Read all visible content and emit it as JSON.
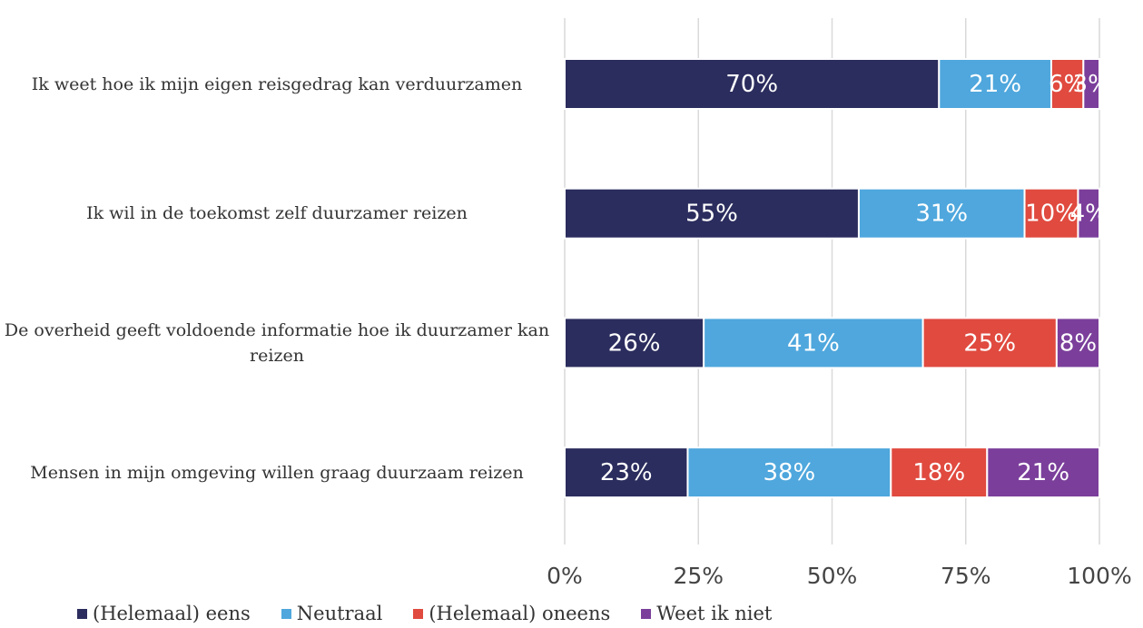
{
  "chart_data": {
    "type": "stacked-barh",
    "categories": [
      "Ik weet hoe ik mijn eigen reisgedrag kan verduurzamen",
      "Ik wil in de toekomst zelf duurzamer reizen",
      "De overheid geeft voldoende informatie hoe ik duurzamer kan reizen",
      "Mensen in mijn omgeving willen graag duurzaam reizen"
    ],
    "series": [
      {
        "name": "(Helemaal) eens",
        "color": "#2b2d5e",
        "values": [
          70,
          55,
          26,
          23
        ],
        "value_labels": [
          "70%",
          "55%",
          "26%",
          "23%"
        ]
      },
      {
        "name": "Neutraal",
        "color": "#4fa7dd",
        "values": [
          21,
          31,
          41,
          38
        ],
        "value_labels": [
          "21%",
          "31%",
          "41%",
          "38%"
        ]
      },
      {
        "name": "(Helemaal) oneens",
        "color": "#e04a3f",
        "values": [
          6,
          10,
          25,
          18
        ],
        "value_labels": [
          "6%",
          "10%",
          "25%",
          "18%"
        ]
      },
      {
        "name": "Weet ik niet",
        "color": "#7b3f9b",
        "values": [
          3,
          4,
          8,
          21
        ],
        "value_labels": [
          "3%",
          "4%",
          "8%",
          "21%"
        ]
      }
    ],
    "xlim": [
      0,
      100
    ],
    "xticks": [
      {
        "value": 0,
        "label": "0%"
      },
      {
        "value": 25,
        "label": "25%"
      },
      {
        "value": 50,
        "label": "50%"
      },
      {
        "value": 75,
        "label": "75%"
      },
      {
        "value": 100,
        "label": "100%"
      }
    ],
    "grid": true
  }
}
